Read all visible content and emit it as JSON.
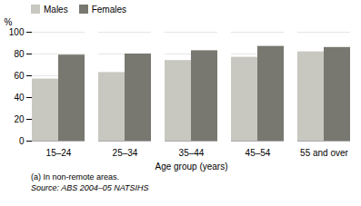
{
  "chart_data": {
    "type": "bar",
    "categories": [
      "15–24",
      "25–34",
      "35–44",
      "45–54",
      "55 and over"
    ],
    "series": [
      {
        "name": "Males",
        "color": "#c8c8c0",
        "values": [
          57,
          63,
          74,
          77,
          82
        ]
      },
      {
        "name": "Females",
        "color": "#787870",
        "values": [
          79,
          80,
          83,
          87,
          86
        ]
      }
    ],
    "xlabel": "Age group (years)",
    "ylabel": "%",
    "ylim": [
      0,
      100
    ],
    "yticks": [
      0,
      20,
      40,
      60,
      80,
      100
    ],
    "grid": true,
    "legend": "upper left",
    "annotations": [
      "(a) In non-remote areas.",
      "Source: ABS 2004–05 NATSIHS"
    ]
  }
}
